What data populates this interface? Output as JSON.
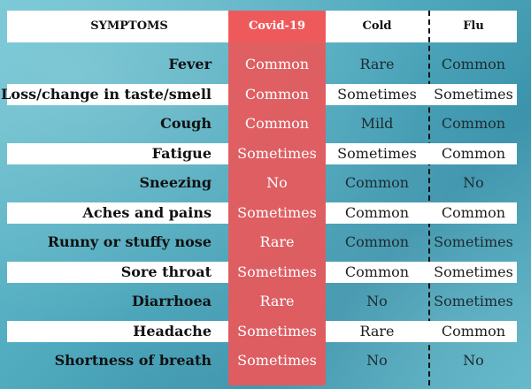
{
  "headers": {
    "symptoms": "SYMPTOMS",
    "covid": "Covid-19",
    "cold": "Cold",
    "flu": "Flu"
  },
  "rows": [
    {
      "symptom": "Fever",
      "covid": "Common",
      "cold": "Rare",
      "flu": "Common"
    },
    {
      "symptom": "Loss/change in taste/smell",
      "covid": "Common",
      "cold": "Sometimes",
      "flu": "Sometimes"
    },
    {
      "symptom": "Cough",
      "covid": "Common",
      "cold": "Mild",
      "flu": "Common"
    },
    {
      "symptom": "Fatigue",
      "covid": "Sometimes",
      "cold": "Sometimes",
      "flu": "Common"
    },
    {
      "symptom": "Sneezing",
      "covid": "No",
      "cold": "Common",
      "flu": "No"
    },
    {
      "symptom": "Aches and pains",
      "covid": "Sometimes",
      "cold": "Common",
      "flu": "Common"
    },
    {
      "symptom": "Runny or stuffy nose",
      "covid": "Rare",
      "cold": "Common",
      "flu": "Sometimes"
    },
    {
      "symptom": "Sore throat",
      "covid": "Sometimes",
      "cold": "Common",
      "flu": "Sometimes"
    },
    {
      "symptom": "Diarrhoea",
      "covid": "Rare",
      "cold": "No",
      "flu": "Sometimes"
    },
    {
      "symptom": "Headache",
      "covid": "Sometimes",
      "cold": "Rare",
      "flu": "Common"
    },
    {
      "symptom": "Shortness of breath",
      "covid": "Sometimes",
      "cold": "No",
      "flu": "No"
    }
  ],
  "colors": {
    "covid_accent": "#e8585a",
    "background": "#4fa9bd",
    "band": "#ffffff"
  }
}
